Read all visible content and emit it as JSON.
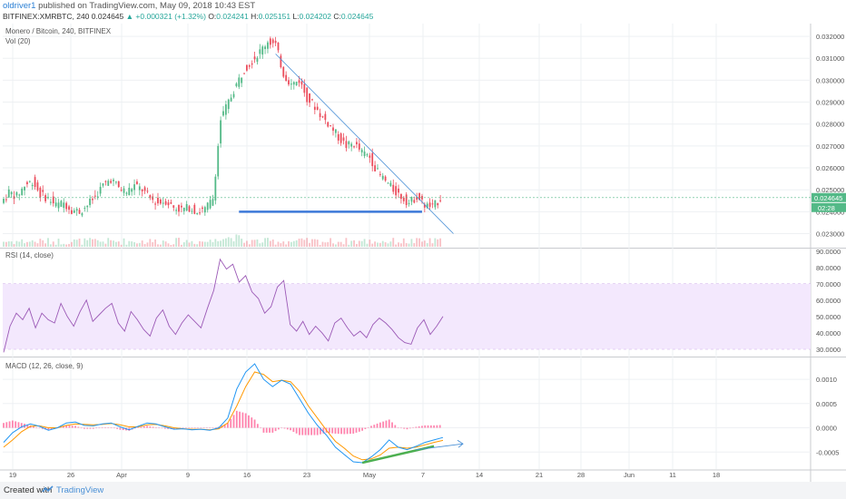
{
  "header": {
    "author": "oldriver1",
    "published": "published on TradingView.com, May 09, 2018 10:43 EST",
    "symbol": "BITFINEX:XMRBTC, 240",
    "last": "0.024645",
    "change": "+0.000321 (+1.32%)",
    "o_label": "O:",
    "o_value": "0.024241",
    "h_label": "H:",
    "h_value": "0.025151",
    "l_label": "L:",
    "l_value": "0.024202",
    "c_label": "C:",
    "c_value": "0.024645"
  },
  "footer": {
    "created": "Created with",
    "brand": "TradingView"
  },
  "colors": {
    "bull": "#53b987",
    "bear": "#eb4d5c",
    "trend": "#4a90d6",
    "support": "#3c78d8",
    "rsi": "#9b59b6",
    "rsi_band": "#f3e8fd",
    "macd": "#2196f3",
    "signal": "#ff9800",
    "hist": "#ff6fa0",
    "divergence": "#4caf50"
  },
  "chart_data": [
    {
      "type": "candlestick",
      "title": "Monero / Bitcoin, 240, BITFINEX",
      "subtitle": "Vol (20)",
      "yticks": [
        "0.032000",
        "0.031000",
        "0.030000",
        "0.029000",
        "0.028000",
        "0.027000",
        "0.026000",
        "0.025000",
        "0.024000",
        "0.023000"
      ],
      "ylim": [
        0.0224,
        0.0325
      ],
      "price_label": "0.024645",
      "countdown_label": "02:28",
      "x_ticks": [
        "19",
        "26",
        "Apr",
        "9",
        "16",
        "23",
        "May",
        "7",
        "14",
        "21",
        "28",
        "Jun",
        "11",
        "18"
      ],
      "close_path": [
        [
          0,
          0.0244
        ],
        [
          3,
          0.0249
        ],
        [
          6,
          0.0247
        ],
        [
          9,
          0.0252
        ],
        [
          12,
          0.0254
        ],
        [
          15,
          0.0248
        ],
        [
          18,
          0.0246
        ],
        [
          21,
          0.0243
        ],
        [
          24,
          0.0244
        ],
        [
          27,
          0.0241
        ],
        [
          30,
          0.024
        ],
        [
          33,
          0.0243
        ],
        [
          36,
          0.0247
        ],
        [
          39,
          0.0252
        ],
        [
          42,
          0.0255
        ],
        [
          45,
          0.0251
        ],
        [
          48,
          0.0249
        ],
        [
          51,
          0.0252
        ],
        [
          54,
          0.025
        ],
        [
          57,
          0.0246
        ],
        [
          60,
          0.0244
        ],
        [
          63,
          0.0245
        ],
        [
          66,
          0.0242
        ],
        [
          69,
          0.0241
        ],
        [
          72,
          0.0242
        ],
        [
          75,
          0.024
        ],
        [
          78,
          0.0241
        ],
        [
          81,
          0.0246
        ],
        [
          84,
          0.0282
        ],
        [
          87,
          0.029
        ],
        [
          90,
          0.0298
        ],
        [
          93,
          0.0305
        ],
        [
          96,
          0.0309
        ],
        [
          99,
          0.0313
        ],
        [
          102,
          0.0318
        ],
        [
          105,
          0.0316
        ],
        [
          108,
          0.0303
        ],
        [
          111,
          0.0298
        ],
        [
          114,
          0.03
        ],
        [
          117,
          0.0292
        ],
        [
          120,
          0.0288
        ],
        [
          123,
          0.0283
        ],
        [
          126,
          0.0279
        ],
        [
          129,
          0.0274
        ],
        [
          132,
          0.027
        ],
        [
          135,
          0.0271
        ],
        [
          138,
          0.0267
        ],
        [
          141,
          0.0265
        ],
        [
          144,
          0.0258
        ],
        [
          147,
          0.0254
        ],
        [
          150,
          0.025
        ],
        [
          153,
          0.0247
        ],
        [
          156,
          0.0244
        ],
        [
          159,
          0.0247
        ],
        [
          162,
          0.0243
        ],
        [
          165,
          0.0242
        ],
        [
          168,
          0.0246
        ]
      ],
      "trendline": [
        [
          104,
          0.0312
        ],
        [
          172,
          0.023
        ]
      ],
      "support_line": [
        [
          0,
          0.024
        ],
        [
          160,
          0.024
        ]
      ]
    },
    {
      "type": "line",
      "title": "RSI (14, close)",
      "yticks": [
        "90.0000",
        "80.0000",
        "70.0000",
        "60.0000",
        "50.0000",
        "40.0000",
        "30.0000"
      ],
      "ylim": [
        26,
        91
      ],
      "band": [
        30,
        70
      ],
      "values": [
        28,
        44,
        52,
        48,
        55,
        43,
        52,
        48,
        46,
        58,
        50,
        44,
        53,
        60,
        47,
        51,
        55,
        58,
        46,
        41,
        53,
        48,
        42,
        38,
        49,
        54,
        44,
        39,
        46,
        51,
        47,
        43,
        55,
        66,
        85,
        79,
        82,
        71,
        75,
        65,
        61,
        52,
        56,
        68,
        72,
        45,
        41,
        47,
        39,
        44,
        40,
        35,
        46,
        49,
        43,
        38,
        41,
        37,
        45,
        49,
        46,
        42,
        37,
        34,
        33,
        43,
        48,
        39,
        44,
        50
      ]
    },
    {
      "type": "line",
      "title": "MACD (12, 26, close, 9)",
      "yticks": [
        "0.0010",
        "0.0005",
        "0.0000",
        "-0.0005"
      ],
      "ylim": [
        -0.00085,
        0.00145
      ],
      "macd": [
        -0.0003,
        -0.0001,
        2e-05,
        8e-05,
        3e-05,
        -5e-05,
        0.0,
        0.0001,
        0.00012,
        5e-05,
        4e-05,
        8e-05,
        0.0001,
        2e-05,
        -4e-05,
        3e-05,
        0.0001,
        8e-05,
        2e-05,
        -3e-05,
        -2e-05,
        -4e-05,
        -3e-05,
        -5e-05,
        0.0,
        0.0002,
        0.0008,
        0.00115,
        0.00132,
        0.001,
        0.00085,
        0.00098,
        0.0009,
        0.0006,
        0.0003,
        5e-05,
        -0.00015,
        -0.0004,
        -0.00055,
        -0.0007,
        -0.00072,
        -0.0006,
        -0.00045,
        -0.00025,
        -0.0004,
        -0.00045,
        -0.00038,
        -0.0003,
        -0.00025,
        -0.0002
      ],
      "signal": [
        -0.0004,
        -0.00025,
        -8e-05,
        3e-05,
        4e-05,
        0.0,
        0.0,
        5e-05,
        8e-05,
        7e-05,
        6e-05,
        7e-05,
        9e-05,
        6e-05,
        2e-05,
        2e-05,
        6e-05,
        7e-05,
        4e-05,
        0.0,
        -2e-05,
        -3e-05,
        -3e-05,
        -4e-05,
        -2e-05,
        0.0001,
        0.00045,
        0.00085,
        0.00115,
        0.0011,
        0.00095,
        0.00098,
        0.00095,
        0.00075,
        0.00045,
        0.0002,
        -5e-05,
        -0.00028,
        -0.00042,
        -0.00058,
        -0.00066,
        -0.00064,
        -0.00056,
        -0.00042,
        -0.0004,
        -0.00042,
        -0.0004,
        -0.00035,
        -0.0003,
        -0.00026
      ],
      "divergence_line": [
        [
          40,
          -0.00072
        ],
        [
          48,
          -0.00038
        ]
      ]
    }
  ]
}
